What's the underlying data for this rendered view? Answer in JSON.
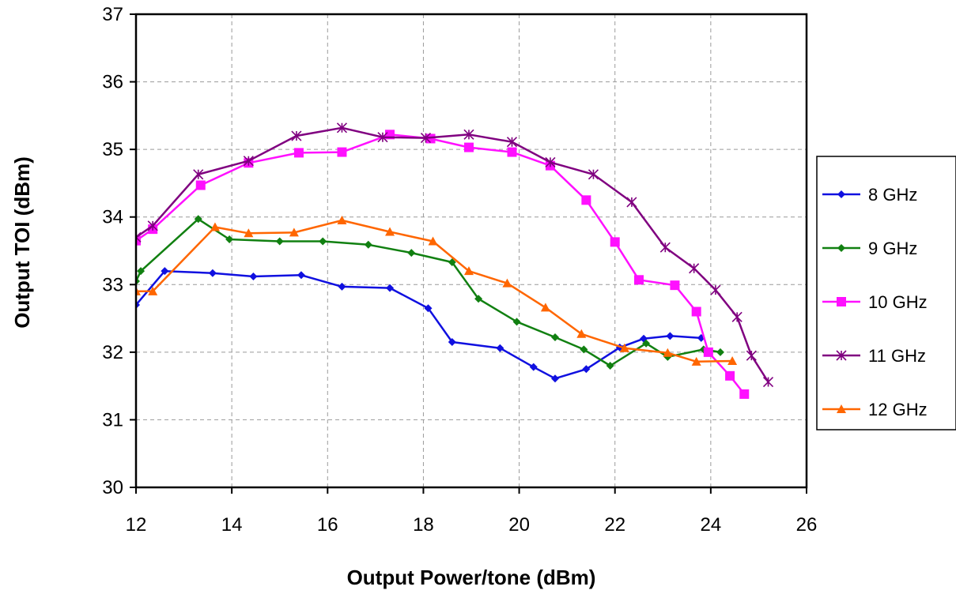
{
  "chart_data": {
    "type": "line",
    "xlabel": "Output Power/tone (dBm)",
    "ylabel": "Output TOI (dBm)",
    "xlim": [
      12,
      26
    ],
    "ylim": [
      30,
      37
    ],
    "xticks": [
      "12",
      "14",
      "16",
      "18",
      "20",
      "22",
      "24",
      "26"
    ],
    "yticks": [
      "30",
      "31",
      "32",
      "33",
      "34",
      "35",
      "36",
      "37"
    ],
    "grid": true,
    "legend_position": "right",
    "series": [
      {
        "name": "8 GHz",
        "color": "#1010e0",
        "marker": "diamond",
        "x": [
          12.0,
          12.6,
          13.6,
          14.45,
          15.45,
          16.3,
          17.3,
          18.1,
          18.6,
          19.6,
          20.3,
          20.75,
          21.4,
          22.1,
          22.6,
          23.15,
          23.8
        ],
        "y": [
          32.7,
          33.2,
          33.17,
          33.12,
          33.14,
          32.97,
          32.95,
          32.65,
          32.15,
          32.06,
          31.78,
          31.61,
          31.75,
          32.07,
          32.2,
          32.24,
          32.21
        ]
      },
      {
        "name": "9 GHz",
        "color": "#118011",
        "marker": "diamond",
        "x": [
          12.0,
          12.1,
          13.3,
          13.95,
          15.0,
          15.9,
          16.85,
          17.75,
          18.6,
          19.15,
          19.95,
          20.75,
          21.35,
          21.9,
          22.65,
          23.1,
          23.85,
          24.2
        ],
        "y": [
          33.05,
          33.2,
          33.97,
          33.67,
          33.64,
          33.64,
          33.59,
          33.47,
          33.33,
          32.79,
          32.45,
          32.22,
          32.04,
          31.8,
          32.13,
          31.93,
          32.04,
          32.0
        ]
      },
      {
        "name": "10 GHz",
        "color": "#ff10ff",
        "marker": "square",
        "x": [
          12.0,
          12.35,
          13.35,
          14.35,
          15.4,
          16.3,
          17.3,
          18.15,
          18.95,
          19.85,
          20.65,
          21.4,
          22.0,
          22.5,
          23.25,
          23.7,
          23.95,
          24.4,
          24.7
        ],
        "y": [
          33.65,
          33.82,
          34.47,
          34.8,
          34.95,
          34.96,
          35.22,
          35.16,
          35.03,
          34.96,
          34.76,
          34.25,
          33.63,
          33.07,
          32.99,
          32.6,
          32.0,
          31.65,
          31.38
        ]
      },
      {
        "name": "11 GHz",
        "color": "#800080",
        "marker": "star",
        "x": [
          12.0,
          12.35,
          13.3,
          14.35,
          15.35,
          16.3,
          17.15,
          18.05,
          18.95,
          19.85,
          20.65,
          21.55,
          22.35,
          23.05,
          23.65,
          24.1,
          24.55,
          24.85,
          25.2
        ],
        "y": [
          33.7,
          33.87,
          34.63,
          34.83,
          35.2,
          35.32,
          35.18,
          35.17,
          35.22,
          35.11,
          34.81,
          34.63,
          34.22,
          33.55,
          33.24,
          32.92,
          32.52,
          31.95,
          31.56
        ]
      },
      {
        "name": "12 GHz",
        "color": "#ff6600",
        "marker": "triangle",
        "x": [
          12.0,
          12.35,
          13.65,
          14.35,
          15.3,
          16.3,
          17.3,
          18.2,
          18.95,
          19.75,
          20.55,
          21.3,
          22.2,
          23.1,
          23.7,
          24.45
        ],
        "y": [
          32.9,
          32.9,
          33.85,
          33.76,
          33.77,
          33.95,
          33.78,
          33.64,
          33.2,
          33.02,
          32.66,
          32.27,
          32.06,
          31.99,
          31.86,
          31.87
        ]
      }
    ]
  }
}
